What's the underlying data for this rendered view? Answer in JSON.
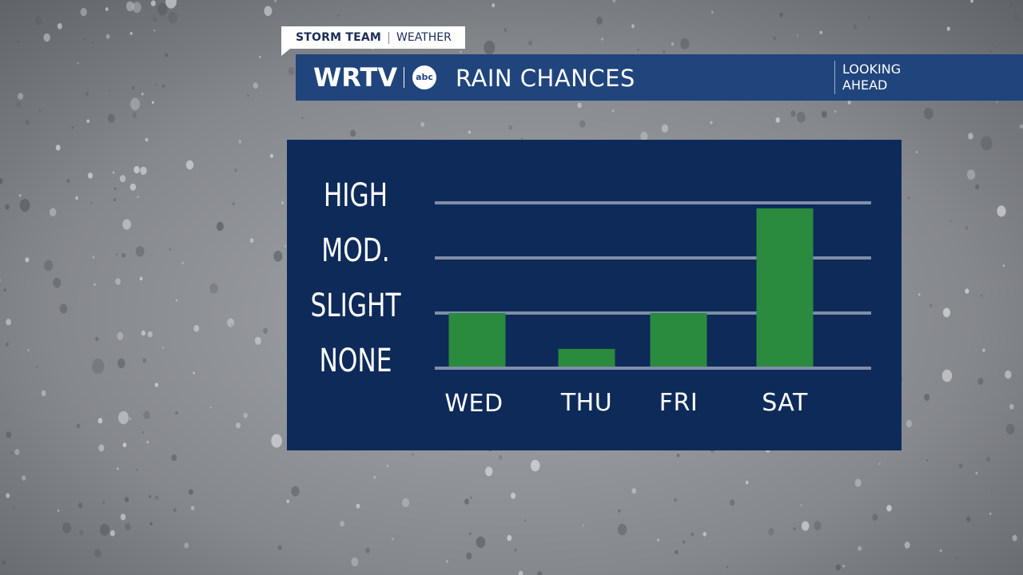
{
  "tag": {
    "team": "STORM TEAM",
    "section": "WEATHER"
  },
  "header": {
    "station": "WRTV",
    "network": "abc",
    "title": "RAIN CHANCES",
    "looking_ahead_line1": "LOOKING",
    "looking_ahead_line2": "AHEAD"
  },
  "colors": {
    "panel": "#0e2a59",
    "bar": "#2a8a3e",
    "header": "#20447c",
    "gridline": "#7f8ea8"
  },
  "chart_data": {
    "type": "bar",
    "categories": [
      "WED",
      "THU",
      "FRI",
      "SAT"
    ],
    "values": [
      1.0,
      0.35,
      1.0,
      2.9
    ],
    "y_levels": [
      "NONE",
      "SLIGHT",
      "MOD.",
      "HIGH"
    ],
    "ylim": [
      0,
      3
    ],
    "grid": true,
    "title": "RAIN CHANCES"
  }
}
